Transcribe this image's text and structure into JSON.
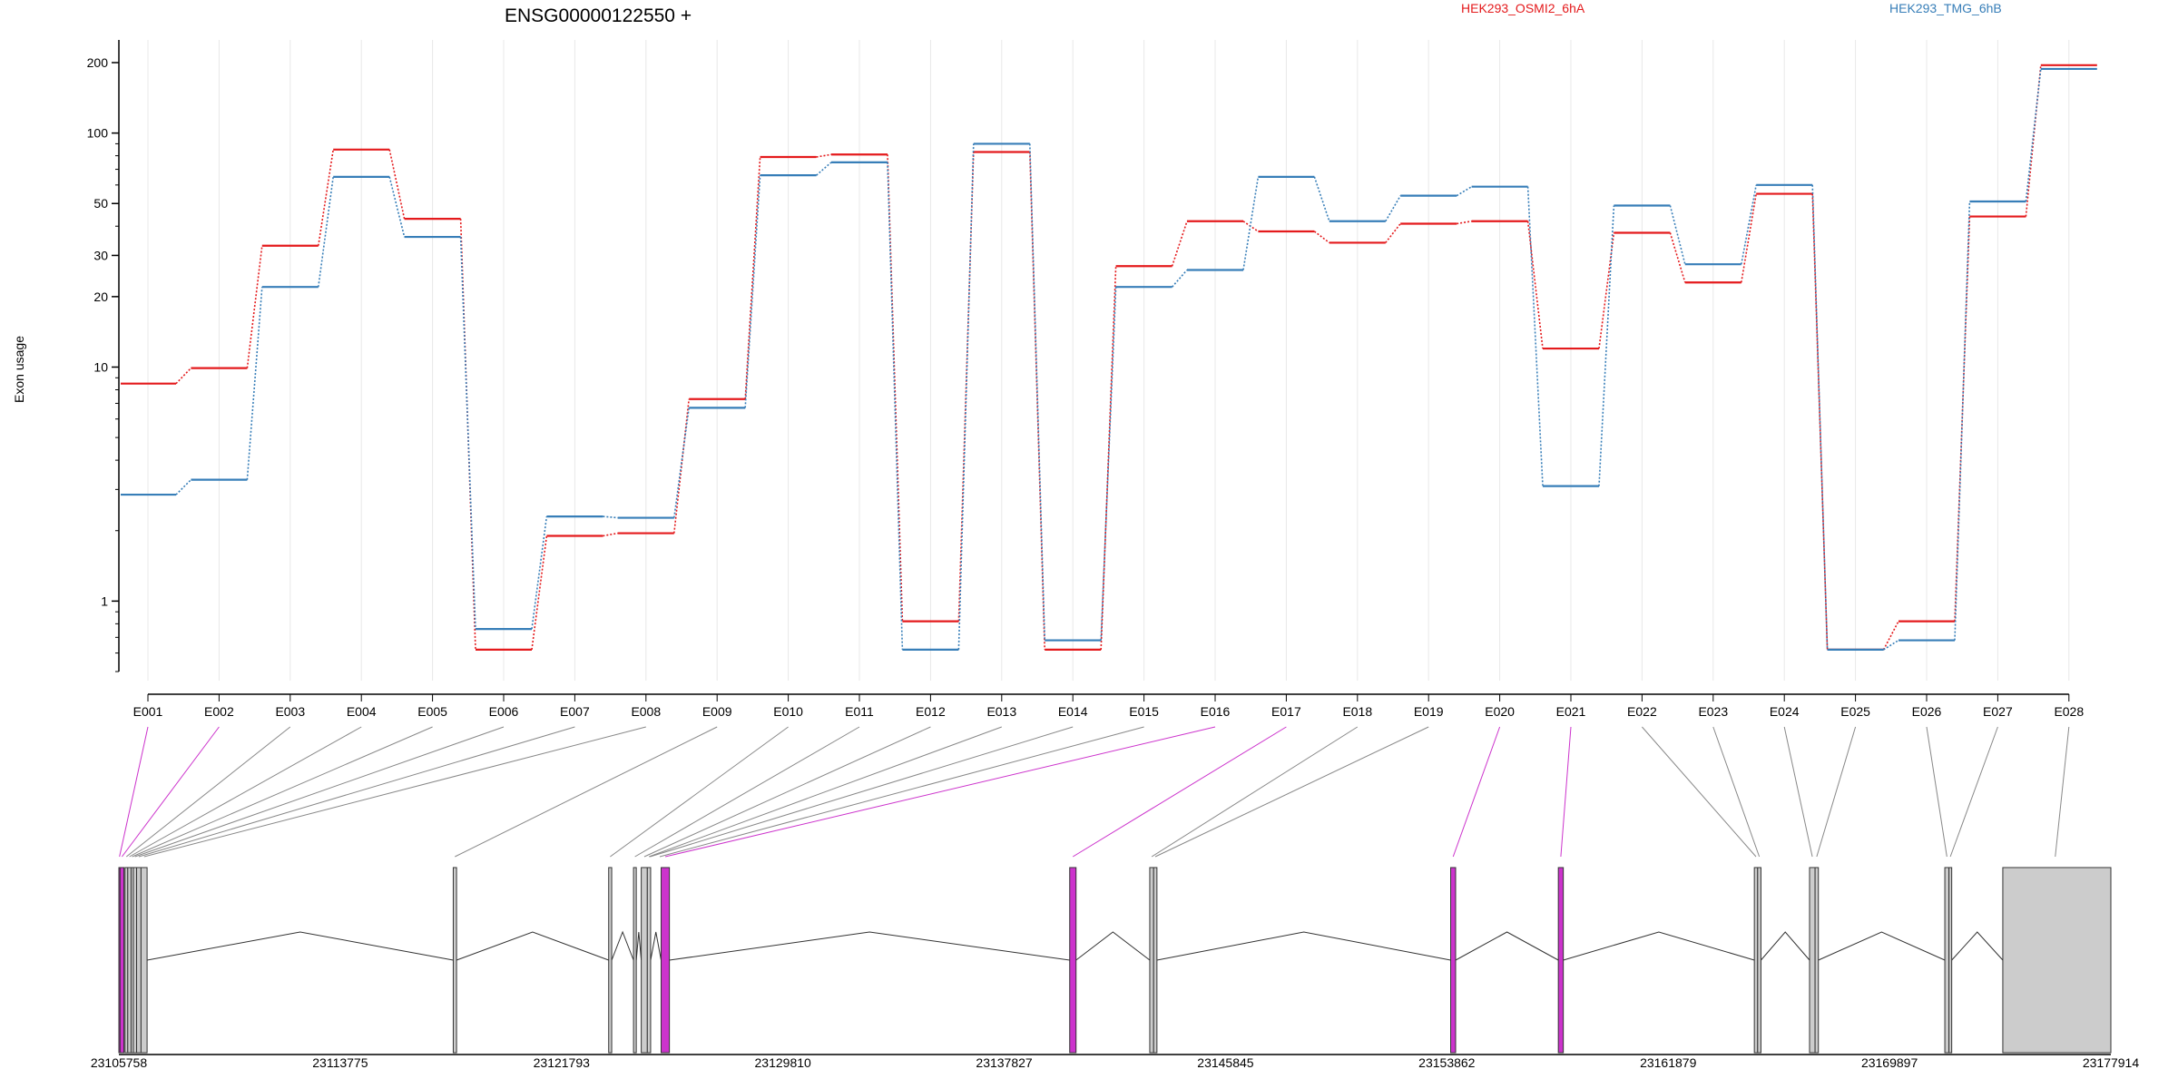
{
  "chart_data": {
    "type": "line",
    "title": "ENSG00000122550 +",
    "ylabel": "Exon usage",
    "yscale": "log",
    "ylim": [
      0.5,
      250
    ],
    "yticks": [
      1,
      10,
      20,
      30,
      50,
      100,
      200
    ],
    "grid": "vertical",
    "legend_position": "top",
    "categories": [
      "E001",
      "E002",
      "E003",
      "E004",
      "E005",
      "E006",
      "E007",
      "E008",
      "E009",
      "E010",
      "E011",
      "E012",
      "E013",
      "E014",
      "E015",
      "E016",
      "E017",
      "E018",
      "E019",
      "E020",
      "E021",
      "E022",
      "E023",
      "E024",
      "E025",
      "E026",
      "E027",
      "E028"
    ],
    "series": [
      {
        "name": "HEK293_OSMI2_6hA",
        "color": "#e41a1c",
        "values": [
          8.5,
          9.9,
          33.0,
          85.0,
          43.0,
          0.62,
          1.9,
          1.95,
          7.3,
          79.0,
          81.0,
          0.82,
          83.0,
          0.62,
          27.0,
          42.0,
          38.0,
          34.0,
          41.0,
          42.0,
          12.0,
          37.5,
          23.0,
          55.0,
          0.62,
          0.82,
          44.0,
          195.0
        ]
      },
      {
        "name": "HEK293_TMG_6hB",
        "color": "#377eb8",
        "values": [
          2.85,
          3.3,
          22.0,
          65.0,
          36.0,
          0.76,
          2.3,
          2.27,
          6.7,
          66.0,
          75.0,
          0.62,
          90.0,
          0.68,
          22.0,
          26.0,
          65.0,
          42.0,
          54.0,
          59.0,
          3.1,
          49.0,
          27.5,
          60.0,
          0.62,
          0.68,
          51.0,
          188.0
        ]
      }
    ],
    "gene_model": {
      "genomic_ticks": [
        "23105758",
        "23113775",
        "23121793",
        "23129810",
        "23137827",
        "23145845",
        "23153862",
        "23161879",
        "23169897",
        "23177914"
      ],
      "genomic_start": 23105758,
      "genomic_end": 23177914,
      "exon_highlight_color": "#cc33cc",
      "exon_default_color": "#cccccc",
      "exons": [
        {
          "start": 23105758,
          "end": 23105800,
          "highlight": true
        },
        {
          "start": 23105800,
          "end": 23105940,
          "highlight": true
        },
        {
          "start": 23105980,
          "end": 23106080,
          "highlight": false
        },
        {
          "start": 23106080,
          "end": 23106200,
          "highlight": false
        },
        {
          "start": 23106200,
          "end": 23106280,
          "highlight": false
        },
        {
          "start": 23106280,
          "end": 23106400,
          "highlight": false
        },
        {
          "start": 23106400,
          "end": 23106560,
          "highlight": false
        },
        {
          "start": 23106560,
          "end": 23106780,
          "highlight": false
        },
        {
          "start": 23117870,
          "end": 23117990,
          "highlight": false
        },
        {
          "start": 23123500,
          "end": 23123610,
          "highlight": false
        },
        {
          "start": 23124400,
          "end": 23124500,
          "highlight": false
        },
        {
          "start": 23124680,
          "end": 23124900,
          "highlight": false
        },
        {
          "start": 23124900,
          "end": 23125020,
          "highlight": false
        },
        {
          "start": 23125400,
          "end": 23125700,
          "highlight": true
        },
        {
          "start": 23140200,
          "end": 23140430,
          "highlight": true
        },
        {
          "start": 23143100,
          "end": 23143240,
          "highlight": false
        },
        {
          "start": 23143240,
          "end": 23143360,
          "highlight": false
        },
        {
          "start": 23154000,
          "end": 23154180,
          "highlight": true
        },
        {
          "start": 23157900,
          "end": 23158080,
          "highlight": true
        },
        {
          "start": 23165000,
          "end": 23165120,
          "highlight": false
        },
        {
          "start": 23165120,
          "end": 23165240,
          "highlight": false
        },
        {
          "start": 23167000,
          "end": 23167200,
          "highlight": false
        },
        {
          "start": 23167200,
          "end": 23167320,
          "highlight": false
        },
        {
          "start": 23171900,
          "end": 23172050,
          "highlight": false
        },
        {
          "start": 23172050,
          "end": 23172150,
          "highlight": false
        },
        {
          "start": 23174000,
          "end": 23177914,
          "highlight": false
        }
      ],
      "exon_label_targets": [
        {
          "pos": 23105780,
          "highlight": true
        },
        {
          "pos": 23105870,
          "highlight": true
        },
        {
          "pos": 23106030,
          "highlight": false
        },
        {
          "pos": 23106140,
          "highlight": false
        },
        {
          "pos": 23106240,
          "highlight": false
        },
        {
          "pos": 23106340,
          "highlight": false
        },
        {
          "pos": 23106480,
          "highlight": false
        },
        {
          "pos": 23106670,
          "highlight": false
        },
        {
          "pos": 23117930,
          "highlight": false
        },
        {
          "pos": 23123555,
          "highlight": false
        },
        {
          "pos": 23124450,
          "highlight": false
        },
        {
          "pos": 23124790,
          "highlight": false
        },
        {
          "pos": 23124960,
          "highlight": false
        },
        {
          "pos": 23125000,
          "highlight": false
        },
        {
          "pos": 23125350,
          "highlight": false
        },
        {
          "pos": 23125550,
          "highlight": true
        },
        {
          "pos": 23140315,
          "highlight": true
        },
        {
          "pos": 23143170,
          "highlight": false
        },
        {
          "pos": 23143300,
          "highlight": false
        },
        {
          "pos": 23154090,
          "highlight": true
        },
        {
          "pos": 23157990,
          "highlight": true
        },
        {
          "pos": 23165060,
          "highlight": false
        },
        {
          "pos": 23165180,
          "highlight": false
        },
        {
          "pos": 23167100,
          "highlight": false
        },
        {
          "pos": 23167260,
          "highlight": false
        },
        {
          "pos": 23171975,
          "highlight": false
        },
        {
          "pos": 23172100,
          "highlight": false
        },
        {
          "pos": 23175900,
          "highlight": false
        }
      ]
    }
  }
}
